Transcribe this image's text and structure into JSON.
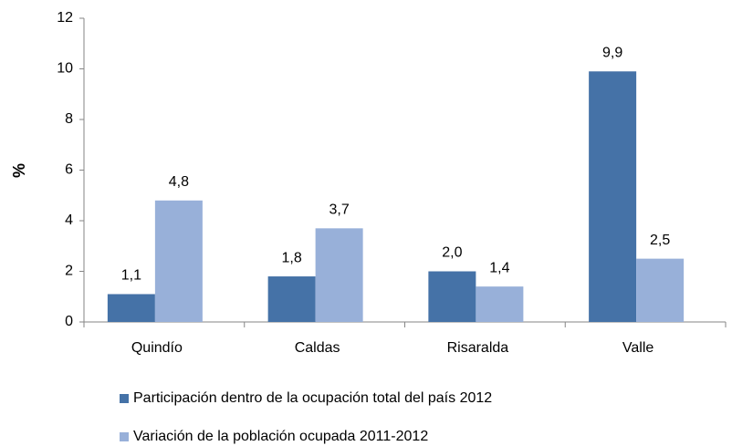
{
  "chart_data": {
    "type": "bar",
    "ylabel": "%",
    "categories": [
      "Quindío",
      "Caldas",
      "Risaralda",
      "Valle"
    ],
    "series": [
      {
        "name": "Participación dentro de la ocupación total del país 2012",
        "color": "#4572a7",
        "values": [
          1.1,
          1.8,
          2.0,
          9.9
        ],
        "value_labels": [
          "1,1",
          "1,8",
          "2,0",
          "9,9"
        ]
      },
      {
        "name": "Variación de la población ocupada 2011-2012",
        "color": "#98b0d9",
        "values": [
          4.8,
          3.7,
          1.4,
          2.5
        ],
        "value_labels": [
          "4,8",
          "3,7",
          "1,4",
          "2,5"
        ]
      }
    ],
    "ylim": [
      0,
      12
    ],
    "yticks": [
      0,
      2,
      4,
      6,
      8,
      10,
      12
    ],
    "grid": false,
    "legend": "bottom"
  }
}
